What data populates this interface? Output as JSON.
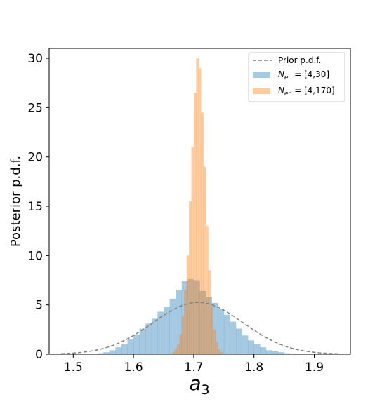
{
  "chart_data": {
    "type": "histogram",
    "title": "",
    "xlabel": "a",
    "xlabel_subscript": "3",
    "ylabel": "Posterior p.d.f.",
    "xlim": [
      1.46,
      1.96
    ],
    "ylim": [
      0,
      31
    ],
    "xticks": [
      "1.5",
      "1.6",
      "1.7",
      "1.8",
      "1.9"
    ],
    "xtick_values": [
      1.5,
      1.6,
      1.7,
      1.8,
      1.9
    ],
    "yticks": [
      "0",
      "5",
      "10",
      "15",
      "20",
      "25",
      "30"
    ],
    "ytick_values": [
      0,
      5,
      10,
      15,
      20,
      25,
      30
    ],
    "grid": false,
    "legend_position": "top-right",
    "series": [
      {
        "name_main": "N",
        "name_sub": "e⁻",
        "name_rest": " = [4,30]",
        "kind": "histogram",
        "color": "#1f77b4",
        "alpha": 0.4,
        "bin_edges": [
          1.54,
          1.55,
          1.56,
          1.57,
          1.58,
          1.59,
          1.6,
          1.61,
          1.62,
          1.63,
          1.64,
          1.65,
          1.66,
          1.67,
          1.68,
          1.69,
          1.7,
          1.71,
          1.72,
          1.73,
          1.74,
          1.75,
          1.76,
          1.77,
          1.78,
          1.79,
          1.8,
          1.81,
          1.82,
          1.83,
          1.84,
          1.85,
          1.86,
          1.87
        ],
        "values": [
          0.1,
          0.2,
          0.4,
          0.7,
          1.0,
          1.5,
          2.0,
          2.6,
          3.1,
          3.6,
          4.3,
          4.8,
          5.6,
          6.5,
          7.4,
          7.6,
          7.5,
          6.4,
          5.8,
          5.2,
          4.6,
          4.0,
          3.3,
          2.6,
          1.9,
          1.4,
          1.0,
          0.7,
          0.4,
          0.3,
          0.2,
          0.1,
          0.05
        ]
      },
      {
        "name_main": "N",
        "name_sub": "e⁻",
        "name_rest": " = [4,170]",
        "kind": "histogram",
        "color": "#ff7f0e",
        "alpha": 0.4,
        "bin_edges": [
          1.664,
          1.668,
          1.672,
          1.676,
          1.68,
          1.684,
          1.688,
          1.692,
          1.696,
          1.7,
          1.704,
          1.708,
          1.712,
          1.716,
          1.72,
          1.724,
          1.728,
          1.732,
          1.736,
          1.74,
          1.744,
          1.748
        ],
        "values": [
          0.2,
          0.5,
          1.0,
          2.0,
          3.8,
          6.5,
          10.0,
          15.5,
          21.0,
          26.5,
          30.0,
          29.0,
          24.5,
          19.0,
          13.0,
          8.5,
          4.8,
          2.5,
          1.2,
          0.5,
          0.2
        ]
      },
      {
        "name": "Prior p.d.f.",
        "kind": "line",
        "style": "dashed",
        "color": "#808080",
        "distribution": "normal",
        "mean": 1.707,
        "sd": 0.075,
        "x_range": [
          1.48,
          1.94
        ],
        "peak_value": 5.25
      }
    ]
  }
}
